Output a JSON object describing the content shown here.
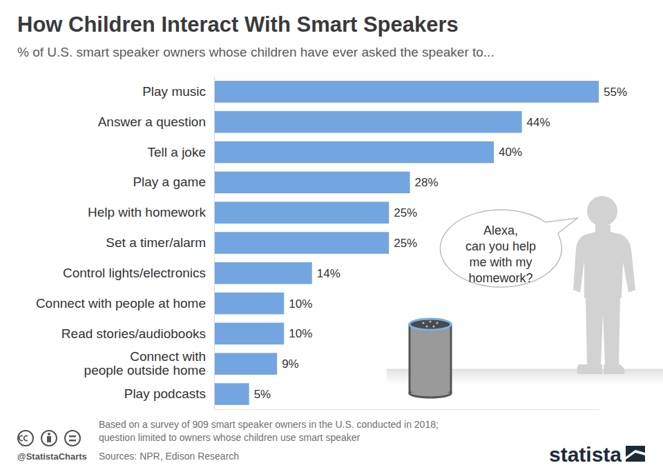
{
  "chart_data": {
    "type": "bar",
    "orientation": "horizontal",
    "title": "How Children Interact With Smart Speakers",
    "subtitle": "% of U.S. smart speaker owners whose children have ever asked the speaker to...",
    "categories": [
      "Play music",
      "Answer a question",
      "Tell a joke",
      "Play a game",
      "Help with homework",
      "Set a timer/alarm",
      "Control lights/electronics",
      "Connect with people at home",
      "Read stories/audiobooks",
      "Connect with people outside home",
      "Play podcasts"
    ],
    "values": [
      55,
      44,
      40,
      28,
      25,
      25,
      14,
      10,
      10,
      9,
      5
    ],
    "value_labels": [
      "55%",
      "44%",
      "40%",
      "28%",
      "25%",
      "25%",
      "14%",
      "10%",
      "10%",
      "9%",
      "5%"
    ],
    "color": "#73a5e0",
    "xlim": [
      0,
      55
    ],
    "data_labels": true,
    "tick_labels": "y",
    "grid": false,
    "annotation": [
      "Alexa,",
      "can you help",
      "me with my",
      "homework?"
    ],
    "notes": [
      "Based on a survey of 909 smart speaker owners in the U.S. conducted in 2018;",
      "question limited to owners whose children use smart speaker"
    ],
    "source": "Sources: NPR, Edison Research",
    "credit": "@StatistaCharts",
    "logo": "statista"
  }
}
